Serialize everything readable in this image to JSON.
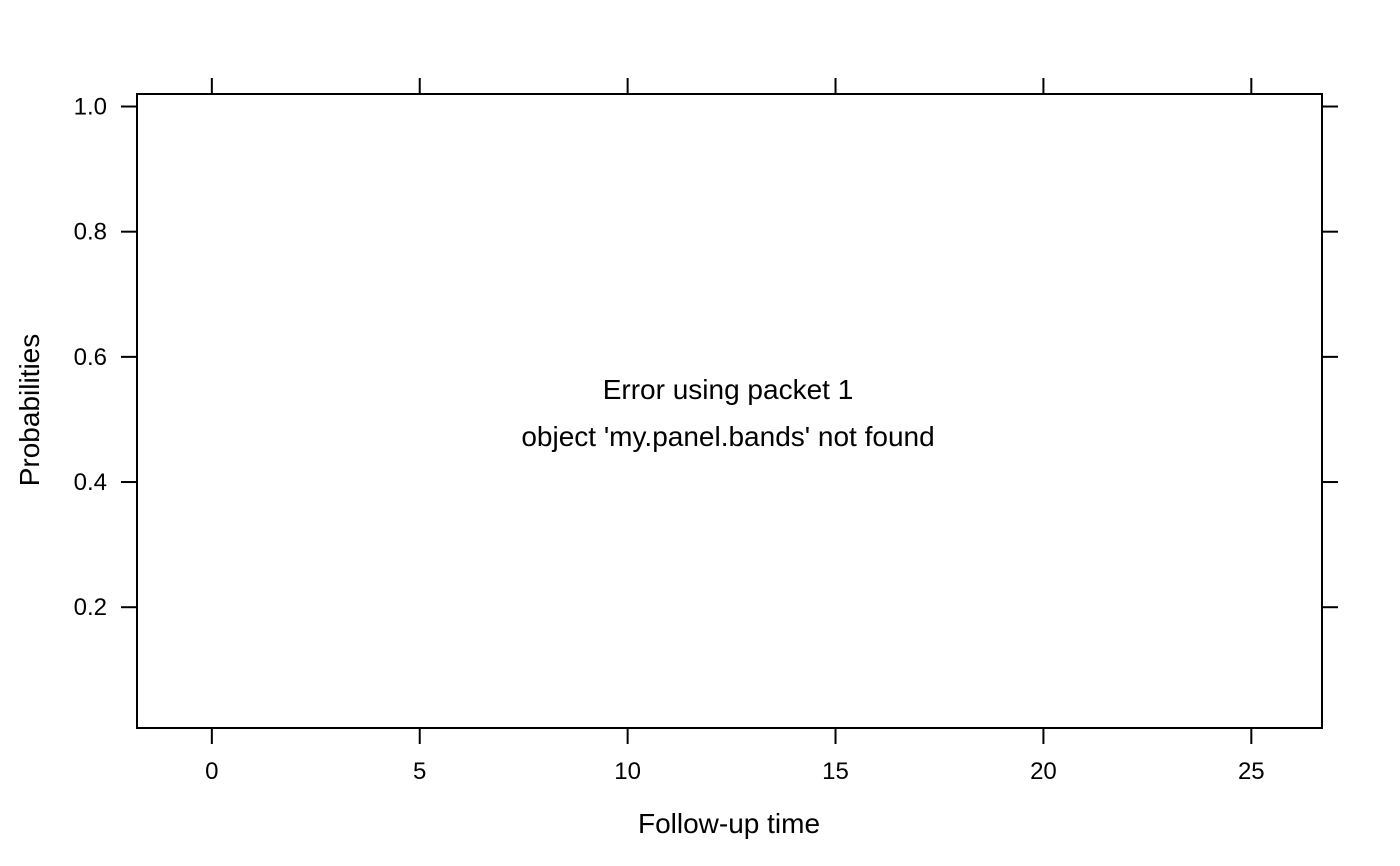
{
  "chart_data": {
    "type": "line",
    "title": "",
    "xlabel": "Follow-up time",
    "ylabel": "Probabilities",
    "xlim": [
      -1.8,
      26.7
    ],
    "ylim": [
      0.007,
      1.02
    ],
    "x_ticks": [
      0,
      5,
      10,
      15,
      20,
      25
    ],
    "y_ticks": [
      0.2,
      0.4,
      0.6,
      0.8,
      1.0
    ],
    "x_tick_labels": [
      "0",
      "5",
      "10",
      "15",
      "20",
      "25"
    ],
    "y_tick_labels": [
      "0.2",
      "0.4",
      "0.6",
      "0.8",
      "1.0"
    ],
    "series": [],
    "grid": false,
    "annotations": [
      "Error using packet 1",
      "object 'my.panel.bands' not found"
    ]
  }
}
